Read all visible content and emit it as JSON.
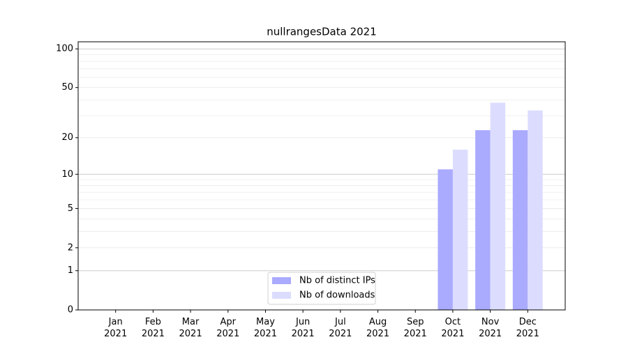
{
  "chart_data": {
    "type": "bar",
    "title": "nullrangesData 2021",
    "categories": [
      "Jan 2021",
      "Feb 2021",
      "Mar 2021",
      "Apr 2021",
      "May 2021",
      "Jun 2021",
      "Jul 2021",
      "Aug 2021",
      "Sep 2021",
      "Oct 2021",
      "Nov 2021",
      "Dec 2021"
    ],
    "series": [
      {
        "name": "Nb of distinct IPs",
        "color": "#aaaaff",
        "values": [
          0,
          0,
          0,
          0,
          0,
          0,
          0,
          0,
          0,
          11,
          23,
          23
        ]
      },
      {
        "name": "Nb of downloads",
        "color": "#dcdcff",
        "values": [
          0,
          0,
          0,
          0,
          0,
          0,
          0,
          0,
          0,
          16,
          38,
          33
        ]
      }
    ],
    "yscale": "log1p",
    "ylim": [
      0,
      113.5
    ],
    "yticks": [
      0,
      1,
      2,
      5,
      10,
      20,
      50,
      100
    ],
    "minor_yticks": [
      3,
      4,
      6,
      7,
      8,
      9,
      30,
      40,
      60,
      70,
      80,
      90
    ],
    "grid": true,
    "legend": "lower center"
  }
}
